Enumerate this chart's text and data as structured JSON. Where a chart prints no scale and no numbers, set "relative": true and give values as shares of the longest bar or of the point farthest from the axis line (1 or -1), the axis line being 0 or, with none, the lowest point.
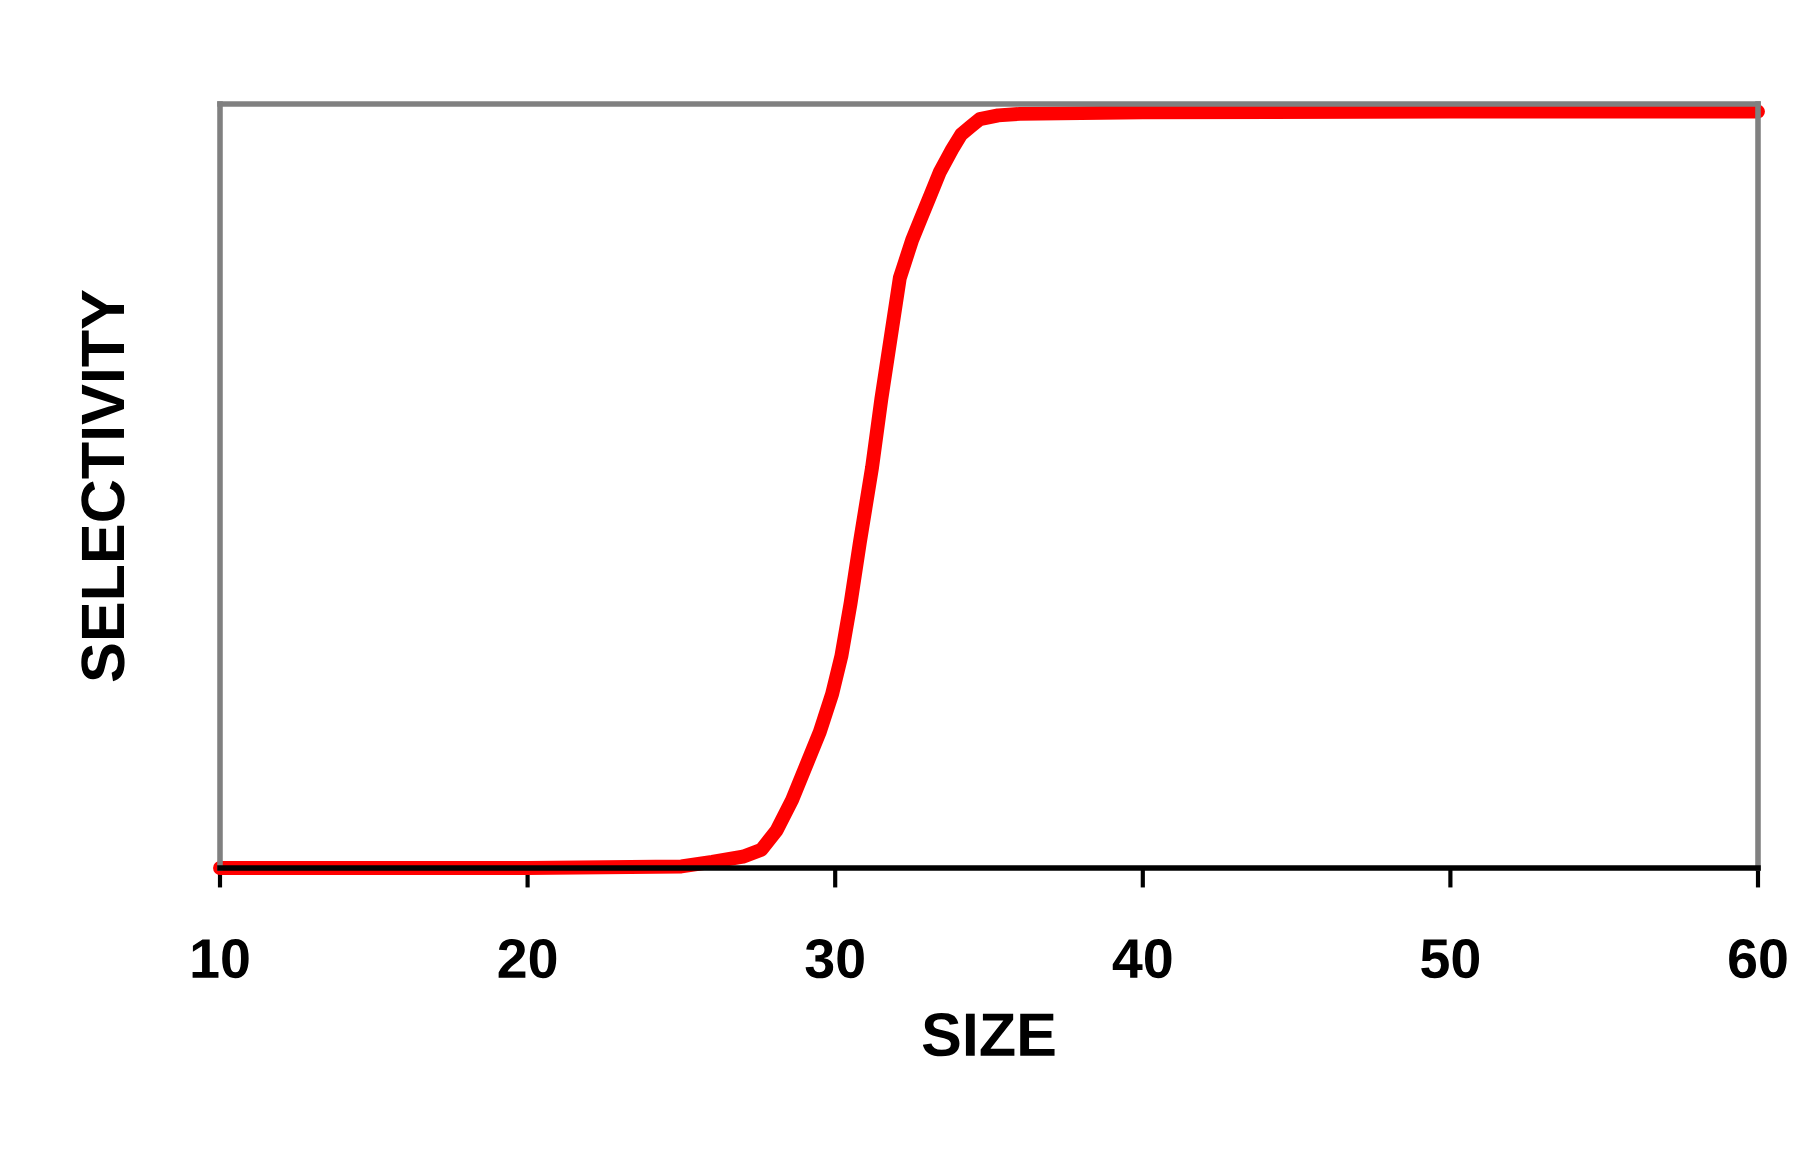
{
  "chart_data": {
    "type": "line",
    "xlabel": "SIZE",
    "ylabel": "SELECTIVITY",
    "relative": true,
    "xlim": [
      10,
      60
    ],
    "xticks": [
      10,
      20,
      30,
      40,
      50,
      60
    ],
    "grid": false,
    "legend": false,
    "marker": "none",
    "line_style": "solid",
    "series": [
      {
        "color": "#ff0000",
        "x": [
          10,
          15,
          20,
          25,
          26,
          27,
          27.6,
          28.1,
          28.6,
          29.1,
          29.5,
          29.9,
          30.2,
          30.5,
          30.8,
          31.2,
          31.5,
          31.8,
          32.1,
          32.5,
          32.8,
          33.1,
          33.4,
          33.8,
          34.1,
          34.4,
          34.7,
          35.3,
          36,
          38,
          40,
          50,
          60
        ],
        "values": [
          0,
          0,
          0,
          0.002,
          0.008,
          0.015,
          0.024,
          0.05,
          0.09,
          0.14,
          0.18,
          0.23,
          0.28,
          0.35,
          0.43,
          0.53,
          0.62,
          0.7,
          0.78,
          0.83,
          0.86,
          0.89,
          0.92,
          0.95,
          0.97,
          0.98,
          0.99,
          0.995,
          0.997,
          0.998,
          0.999,
          1,
          1
        ]
      }
    ]
  }
}
